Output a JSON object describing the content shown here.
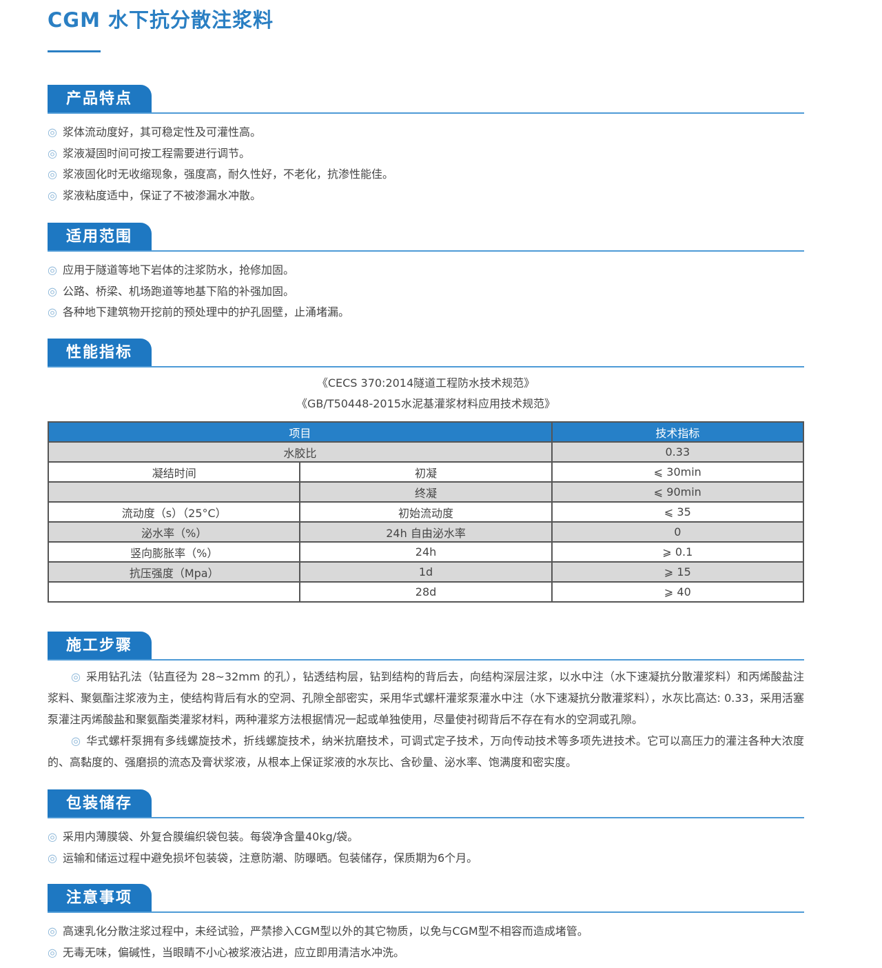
{
  "title": "CGM 水下抗分散注浆料",
  "colors": {
    "accent": "#1e78c2",
    "bullet": "#8bb6d8",
    "table_header": "#2680c8",
    "table_stripe": "#d9d9d9"
  },
  "bullet_icon": "double-circle",
  "sections": {
    "features": {
      "heading": "产品特点",
      "items": [
        "浆体流动度好，其可稳定性及可灌性高。",
        "浆液凝固时间可按工程需要进行调节。",
        "浆液固化时无收缩现象，强度高，耐久性好，不老化，抗渗性能佳。",
        "浆液粘度适中，保证了不被渗漏水冲散。"
      ]
    },
    "scope": {
      "heading": "适用范围",
      "items": [
        "应用于隧道等地下岩体的注浆防水，抢修加固。",
        "公路、桥梁、机场跑道等地基下陷的补强加固。",
        "各种地下建筑物开挖前的预处理中的护孔固壁，止涌堵漏。"
      ]
    },
    "performance": {
      "heading": "性能指标",
      "refs": [
        "《CECS 370:2014隧道工程防水技术规范》",
        "《GB/T50448-2015水泥基灌浆材料应用技术规范》"
      ],
      "table": {
        "headers": [
          "项目",
          "技术指标"
        ],
        "rows": [
          [
            "水胶比",
            "",
            "0.33"
          ],
          [
            "凝结时间",
            "初凝",
            "⩽ 30min"
          ],
          [
            "",
            "终凝",
            "⩽ 90min"
          ],
          [
            "流动度（s）（25°C）",
            "初始流动度",
            "⩽ 35"
          ],
          [
            "泌水率（%）",
            "24h 自由泌水率",
            "0"
          ],
          [
            "竖向膨胀率（%）",
            "24h",
            "⩾ 0.1"
          ],
          [
            "抗压强度（Mpa）",
            "1d",
            "⩾ 15"
          ],
          [
            "",
            "28d",
            "⩾ 40"
          ]
        ]
      }
    },
    "construction": {
      "heading": "施工步骤",
      "paragraphs": [
        "采用钻孔法（钻直径为 28~32mm 的孔），钻透结构层，钻到结构的背后去，向结构深层注浆，以水中注（水下速凝抗分散灌浆料）和丙烯酸盐注浆料、聚氨酯注浆液为主，使结构背后有水的空洞、孔隙全部密实，采用华式螺杆灌浆泵灌水中注（水下速凝抗分散灌浆料），水灰比高达: 0.33，采用活塞泵灌注丙烯酸盐和聚氨酯类灌浆材料，两种灌浆方法根据情况一起或单独使用，尽量使衬砌背后不存在有水的空洞或孔隙。",
        "华式螺杆泵拥有多线螺旋技术，折线螺旋技术，纳米抗磨技术，可调式定子技术，万向传动技术等多项先进技术。它可以高压力的灌注各种大浓度的、高黏度的、强磨损的流态及膏状浆液，从根本上保证浆液的水灰比、含砂量、泌水率、饱满度和密实度。"
      ]
    },
    "packaging": {
      "heading": "包装储存",
      "items": [
        "采用内薄膜袋、外复合膜编织袋包装。每袋净含量40kg/袋。",
        "运输和储运过程中避免损坏包装袋，注意防潮、防曝晒。包装储存，保质期为6个月。"
      ]
    },
    "notes": {
      "heading": "注意事项",
      "items": [
        "高速乳化分散注浆过程中，未经试验，严禁掺入CGM型以外的其它物质，以免与CGM型不相容而造成堵管。",
        "无毒无味，偏碱性，当眼睛不小心被浆液沾进，应立即用清洁水冲洗。"
      ]
    }
  }
}
